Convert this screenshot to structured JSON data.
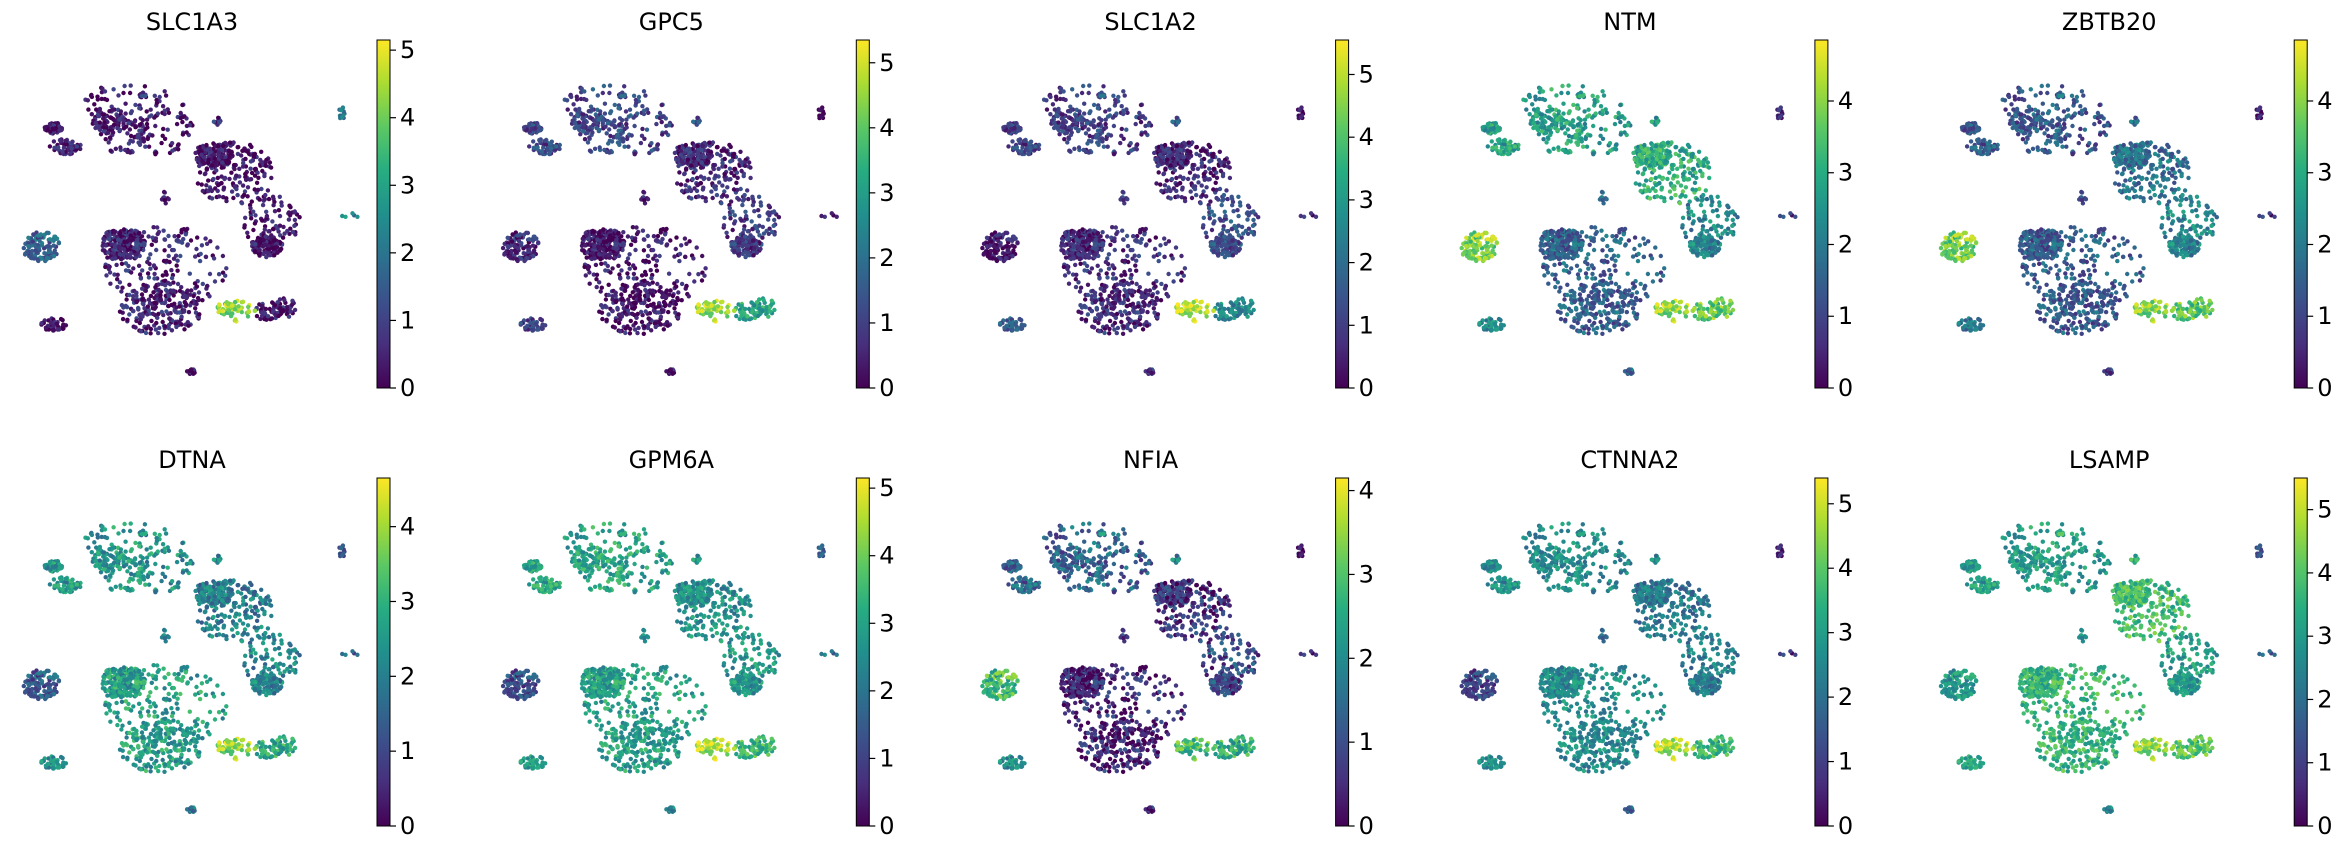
{
  "chart_data": [
    {
      "type": "scatter",
      "title": "SLC1A3",
      "colorbar": {
        "vmin": 0,
        "vmax": 5.15,
        "ticks": [
          "0",
          "1",
          "2",
          "3",
          "4",
          "5"
        ]
      },
      "cluster_levels": {
        "A": 0.3,
        "B": 0.2,
        "C": 0.25,
        "D": 0.5,
        "E": 1.6,
        "F": 0.3,
        "G": 0.1,
        "H": 0.2,
        "I": 2.4,
        "J": 0.7,
        "K": 4.3
      }
    },
    {
      "type": "scatter",
      "title": "GPC5",
      "colorbar": {
        "vmin": 0,
        "vmax": 5.35,
        "ticks": [
          "0",
          "1",
          "2",
          "3",
          "4",
          "5"
        ]
      },
      "cluster_levels": {
        "A": 1.1,
        "B": 0.6,
        "C": 0.9,
        "D": 0.3,
        "E": 0.6,
        "F": 3.1,
        "G": 1.0,
        "H": 0.3,
        "I": 0.2,
        "J": 1.3,
        "K": 4.6
      }
    },
    {
      "type": "scatter",
      "title": "SLC1A2",
      "colorbar": {
        "vmin": 0,
        "vmax": 5.55,
        "ticks": [
          "0",
          "1",
          "2",
          "3",
          "4",
          "5"
        ]
      },
      "cluster_levels": {
        "A": 1.0,
        "B": 0.6,
        "C": 1.3,
        "D": 0.7,
        "E": 0.3,
        "F": 2.6,
        "G": 1.6,
        "H": 0.8,
        "I": 0.6,
        "J": 1.6,
        "K": 5.0
      }
    },
    {
      "type": "scatter",
      "title": "NTM",
      "colorbar": {
        "vmin": 0,
        "vmax": 4.85,
        "ticks": [
          "0",
          "1",
          "2",
          "3",
          "4"
        ]
      },
      "cluster_levels": {
        "A": 2.7,
        "B": 3.0,
        "C": 2.2,
        "D": 1.5,
        "E": 3.9,
        "F": 3.7,
        "G": 2.3,
        "H": 1.6,
        "I": 0.9,
        "J": 2.6,
        "K": 4.1
      }
    },
    {
      "type": "scatter",
      "title": "ZBTB20",
      "colorbar": {
        "vmin": 0,
        "vmax": 4.85,
        "ticks": [
          "0",
          "1",
          "2",
          "3",
          "4"
        ]
      },
      "cluster_levels": {
        "A": 1.3,
        "B": 1.8,
        "C": 2.2,
        "D": 1.4,
        "E": 3.8,
        "F": 3.6,
        "G": 1.9,
        "H": 0.9,
        "I": 0.7,
        "J": 1.7,
        "K": 4.0
      }
    },
    {
      "type": "scatter",
      "title": "DTNA",
      "colorbar": {
        "vmin": 0,
        "vmax": 4.65,
        "ticks": [
          "0",
          "1",
          "2",
          "3",
          "4"
        ]
      },
      "cluster_levels": {
        "A": 2.4,
        "B": 2.0,
        "C": 2.1,
        "D": 2.6,
        "E": 1.3,
        "F": 2.8,
        "G": 2.3,
        "H": 1.9,
        "I": 1.5,
        "J": 2.2,
        "K": 3.9
      }
    },
    {
      "type": "scatter",
      "title": "GPM6A",
      "colorbar": {
        "vmin": 0,
        "vmax": 5.15,
        "ticks": [
          "0",
          "1",
          "2",
          "3",
          "4",
          "5"
        ]
      },
      "cluster_levels": {
        "A": 3.0,
        "B": 2.6,
        "C": 2.7,
        "D": 2.9,
        "E": 1.2,
        "F": 3.4,
        "G": 2.8,
        "H": 2.4,
        "I": 1.9,
        "J": 2.7,
        "K": 4.6
      }
    },
    {
      "type": "scatter",
      "title": "NFIA",
      "colorbar": {
        "vmin": 0,
        "vmax": 4.15,
        "ticks": [
          "0",
          "1",
          "2",
          "3",
          "4"
        ]
      },
      "cluster_levels": {
        "A": 1.3,
        "B": 0.6,
        "C": 0.9,
        "D": 0.4,
        "E": 2.8,
        "F": 2.6,
        "G": 2.0,
        "H": 0.5,
        "I": 0.4,
        "J": 1.9,
        "K": 2.9
      }
    },
    {
      "type": "scatter",
      "title": "CTNNA2",
      "colorbar": {
        "vmin": 0,
        "vmax": 5.4,
        "ticks": [
          "0",
          "1",
          "2",
          "3",
          "4",
          "5"
        ]
      },
      "cluster_levels": {
        "A": 2.6,
        "B": 2.2,
        "C": 2.3,
        "D": 2.6,
        "E": 1.1,
        "F": 3.6,
        "G": 2.6,
        "H": 1.7,
        "I": 0.8,
        "J": 2.6,
        "K": 4.8
      }
    },
    {
      "type": "scatter",
      "title": "LSAMP",
      "colorbar": {
        "vmin": 0,
        "vmax": 5.5,
        "ticks": [
          "0",
          "1",
          "2",
          "3",
          "4",
          "5"
        ]
      },
      "cluster_levels": {
        "A": 3.0,
        "B": 3.8,
        "C": 3.0,
        "D": 3.6,
        "E": 2.9,
        "F": 4.1,
        "G": 3.2,
        "H": 2.6,
        "I": 1.7,
        "J": 3.5,
        "K": 4.6
      }
    }
  ]
}
